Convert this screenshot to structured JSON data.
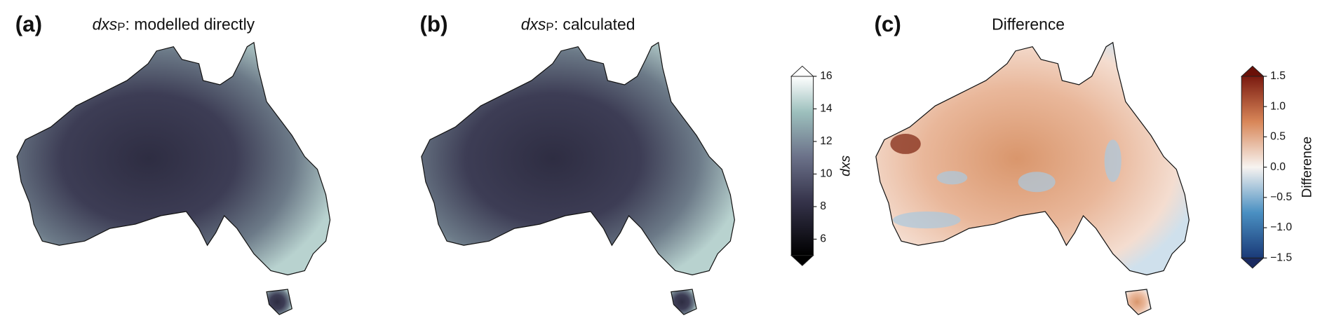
{
  "panels": [
    {
      "label": "(a)",
      "title_var": "dxs",
      "title_sub": "P",
      "title_text": ": modelled directly"
    },
    {
      "label": "(b)",
      "title_var": "dxs",
      "title_sub": "P",
      "title_text": ": calculated"
    },
    {
      "label": "(c)",
      "title_text": "Difference"
    }
  ],
  "colorbars": [
    {
      "label": "dxs",
      "lim": [
        5,
        16
      ],
      "ticks": [
        6,
        8,
        10,
        12,
        14,
        16
      ]
    },
    {
      "label": "Difference",
      "lim": [
        -1.5,
        1.5
      ],
      "ticks": [
        {
          "value": -1.5,
          "label": "−1.5"
        },
        {
          "value": -1.0,
          "label": "−1.0"
        },
        {
          "value": -0.5,
          "label": "−0.5"
        },
        {
          "value": 0,
          "label": "0.0"
        },
        {
          "value": 0.5,
          "label": "0.5"
        },
        {
          "value": 1.0,
          "label": "1.0"
        },
        1.5
      ]
    }
  ]
}
